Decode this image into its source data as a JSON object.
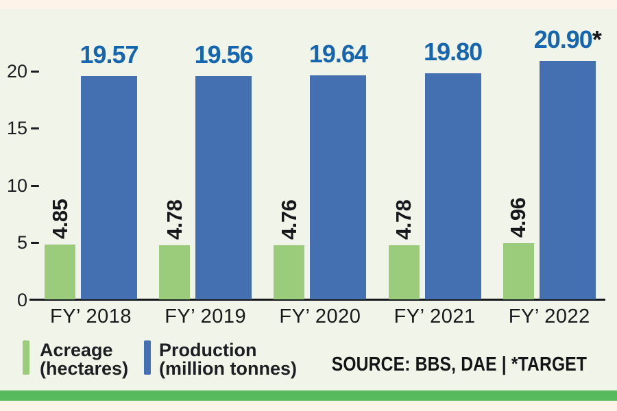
{
  "page": {
    "background_color": "#f1f4e8",
    "band_color": "#fdf3e8",
    "footer_strip_color": "#57ba5d",
    "axis_color": "#15181a"
  },
  "chart_data": {
    "type": "bar",
    "categories": [
      "FY’ 2018",
      "FY’ 2019",
      "FY’ 2020",
      "FY’ 2021",
      "FY’ 2022"
    ],
    "series": [
      {
        "name": "Acreage (hectares)",
        "color": "#9bcc7b",
        "values": [
          4.85,
          4.78,
          4.76,
          4.78,
          4.96
        ],
        "labels": [
          "4.85",
          "4.78",
          "4.76",
          "4.78",
          "4.96"
        ],
        "label_suffixes": [
          "",
          "",
          "",
          "",
          ""
        ]
      },
      {
        "name": "Production (million tonnes)",
        "color": "#4470b2",
        "values": [
          19.57,
          19.56,
          19.64,
          19.8,
          20.9
        ],
        "labels": [
          "19.57",
          "19.56",
          "19.64",
          "19.80",
          "20.90"
        ],
        "label_suffixes": [
          "",
          "",
          "",
          "",
          "*"
        ]
      }
    ],
    "ylim": [
      0,
      22
    ],
    "yticks": [
      0,
      5,
      10,
      15,
      20
    ],
    "grid": false,
    "legend_position": "bottom-left",
    "value_label_color": "#1566af",
    "rotated_label_color": "#15181a"
  },
  "legend": {
    "items": [
      {
        "label_line1": "Acreage",
        "label_line2": "(hectares)",
        "color": "#9bcc7b"
      },
      {
        "label_line1": "Production",
        "label_line2": "(million tonnes)",
        "color": "#4470b2"
      }
    ]
  },
  "source_note": "SOURCE: BBS, DAE | *TARGET"
}
